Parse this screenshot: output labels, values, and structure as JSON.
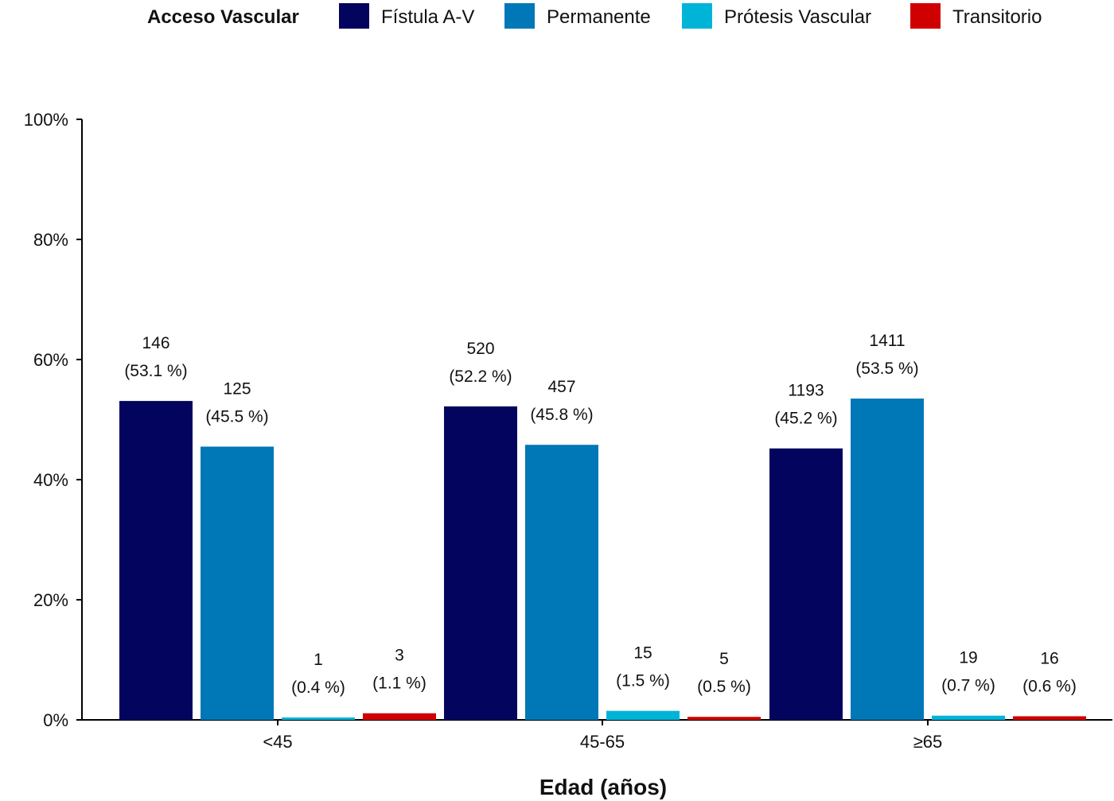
{
  "chart_data": {
    "type": "bar",
    "xlabel": "Edad (años)",
    "ylabel": "",
    "ylim": [
      0,
      100
    ],
    "y_ticks": [
      "0%",
      "20%",
      "40%",
      "60%",
      "80%",
      "100%"
    ],
    "y_tick_values": [
      0,
      20,
      40,
      60,
      80,
      100
    ],
    "legend_title": "Acceso Vascular",
    "legend_position": "top",
    "grid": false,
    "categories": [
      "<45",
      "45-65",
      "≥65"
    ],
    "series": [
      {
        "name": "Fístula A-V",
        "color": "#03045e",
        "values": [
          53.1,
          52.2,
          45.2
        ],
        "counts": [
          "146",
          "520",
          "1193"
        ],
        "pct_labels": [
          "(53.1 %)",
          "(52.2 %)",
          "(45.2 %)"
        ]
      },
      {
        "name": "Permanente",
        "color": "#0077b6",
        "values": [
          45.5,
          45.8,
          53.5
        ],
        "counts": [
          "125",
          "457",
          "1411"
        ],
        "pct_labels": [
          "(45.5 %)",
          "(45.8 %)",
          "(53.5 %)"
        ]
      },
      {
        "name": "Prótesis Vascular",
        "color": "#00b4d8",
        "values": [
          0.4,
          1.5,
          0.7
        ],
        "counts": [
          "1",
          "15",
          "19"
        ],
        "pct_labels": [
          "(0.4 %)",
          "(1.5 %)",
          "(0.7 %)"
        ]
      },
      {
        "name": "Transitorio",
        "color": "#d00000",
        "values": [
          1.1,
          0.5,
          0.6
        ],
        "counts": [
          "3",
          "5",
          "16"
        ],
        "pct_labels": [
          "(1.1 %)",
          "(0.5 %)",
          "(0.6 %)"
        ]
      }
    ]
  }
}
